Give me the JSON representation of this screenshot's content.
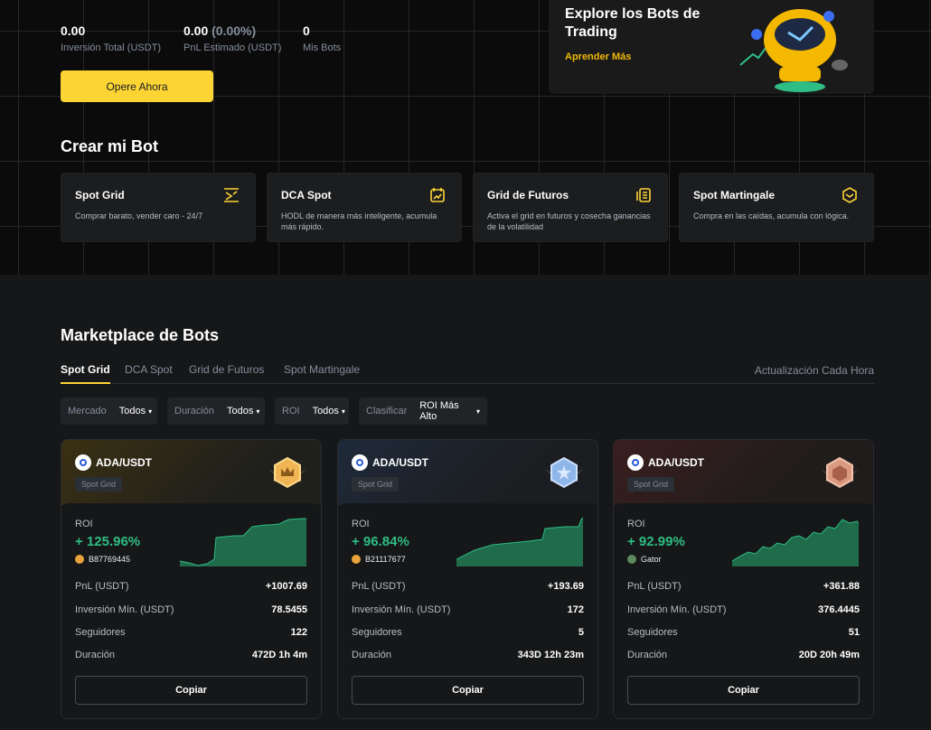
{
  "stats": [
    {
      "value": "0.00",
      "suffix": "",
      "label": "Inversión Total (USDT)"
    },
    {
      "value": "0.00",
      "suffix": "(0.00%)",
      "label": "PnL Estimado (USDT)"
    },
    {
      "value": "0",
      "suffix": "",
      "label": "Mis Bots"
    }
  ],
  "cta_label": "Opere Ahora",
  "promo": {
    "title": "Explore los Bots de Trading",
    "link": "Aprender Más"
  },
  "create_title": "Crear mi Bot",
  "templates": [
    {
      "name": "Spot Grid",
      "desc": "Comprar barato, vender caro - 24/7",
      "icon": "grid-icon"
    },
    {
      "name": "DCA Spot",
      "desc": "HODL de manera más inteligente, acumula más rápido.",
      "icon": "calendar-chart-icon"
    },
    {
      "name": "Grid de Futuros",
      "desc": "Activa el grid en futuros y cosecha ganancias de la volatilidad",
      "icon": "document-icon"
    },
    {
      "name": "Spot Martingale",
      "desc": "Compra en las caídas, acumula con lógica.",
      "icon": "hexagon-icon"
    }
  ],
  "marketplace": {
    "title": "Marketplace de Bots",
    "tabs": [
      "Spot Grid",
      "DCA Spot",
      "Grid de Futuros",
      "Spot Martingale"
    ],
    "active_tab": "Spot Grid",
    "update_note": "Actualización Cada Hora",
    "filters": [
      {
        "label": "Mercado",
        "value": "Todos"
      },
      {
        "label": "Duración",
        "value": "Todos"
      },
      {
        "label": "ROI",
        "value": "Todos"
      },
      {
        "label": "Clasificar",
        "value": "ROI Más Alto"
      }
    ],
    "row_labels": {
      "pnl": "PnL (USDT)",
      "min_inv": "Inversión Mín. (USDT)",
      "followers": "Seguidores",
      "duration": "Duración",
      "roi": "ROI",
      "copy": "Copiar"
    },
    "bots": [
      {
        "pair": "ADA/USDT",
        "type": "Spot Grid",
        "rank": "gold",
        "roi": "+ 125.96%",
        "user": "B87769445",
        "pnl": "+1007.69",
        "min_inv": "78.5455",
        "followers": "122",
        "duration": "472D 1h 4m"
      },
      {
        "pair": "ADA/USDT",
        "type": "Spot Grid",
        "rank": "silver",
        "roi": "+ 96.84%",
        "user": "B21117677",
        "pnl": "+193.69",
        "min_inv": "172",
        "followers": "5",
        "duration": "343D 12h 23m"
      },
      {
        "pair": "ADA/USDT",
        "type": "Spot Grid",
        "rank": "bronze",
        "roi": "+ 92.99%",
        "user": "Gator",
        "pnl": "+361.88",
        "min_inv": "376.4445",
        "followers": "51",
        "duration": "20D 20h 49m"
      }
    ]
  },
  "colors": {
    "accent": "#fcd535",
    "positive": "#2ebd85",
    "background": "#0b0b0b",
    "panel": "#161718"
  }
}
